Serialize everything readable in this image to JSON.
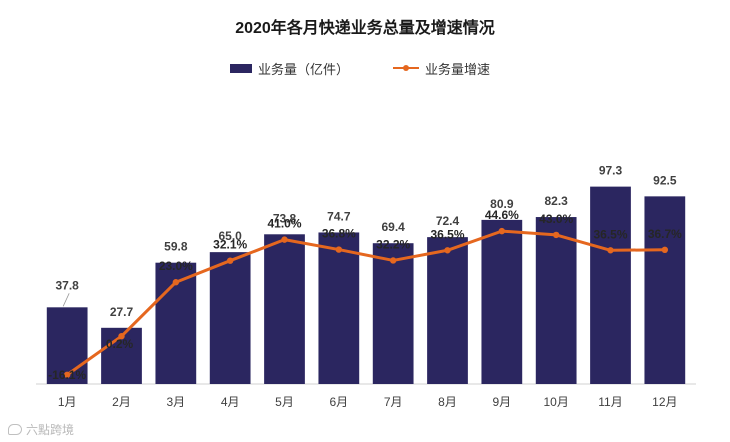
{
  "chart_data": {
    "type": "bar",
    "title": "2020年各月快递业务总量及增速情况",
    "categories": [
      "1月",
      "2月",
      "3月",
      "4月",
      "5月",
      "6月",
      "7月",
      "8月",
      "9月",
      "10月",
      "11月",
      "12月"
    ],
    "series": [
      {
        "name": "业务量（亿件）",
        "type": "bar",
        "color": "#2b2660",
        "values": [
          37.8,
          27.7,
          59.8,
          65.0,
          73.8,
          74.7,
          69.4,
          72.4,
          80.9,
          82.3,
          97.3,
          92.5
        ],
        "labels": [
          "37.8",
          "27.7",
          "59.8",
          "65.0",
          "73.8",
          "74.7",
          "69.4",
          "72.4",
          "80.9",
          "82.3",
          "97.3",
          "92.5"
        ]
      },
      {
        "name": "业务量增速",
        "type": "line",
        "color": "#e5671f",
        "values": [
          -16.1,
          0.2,
          23.0,
          32.1,
          41.0,
          36.8,
          32.2,
          36.5,
          44.6,
          43.0,
          36.5,
          36.7
        ],
        "labels": [
          "-16.1%",
          "0.2%",
          "23.0%",
          "32.1%",
          "41.0%",
          "36.8%",
          "32.2%",
          "36.5%",
          "44.6%",
          "43.0%",
          "36.5%",
          "36.7%"
        ]
      }
    ],
    "bar_ylim": [
      0,
      140
    ],
    "line_ylim": [
      -20,
      100
    ],
    "legend_position": "top-center",
    "grid": false
  },
  "watermark": {
    "text": "六點跨境"
  }
}
